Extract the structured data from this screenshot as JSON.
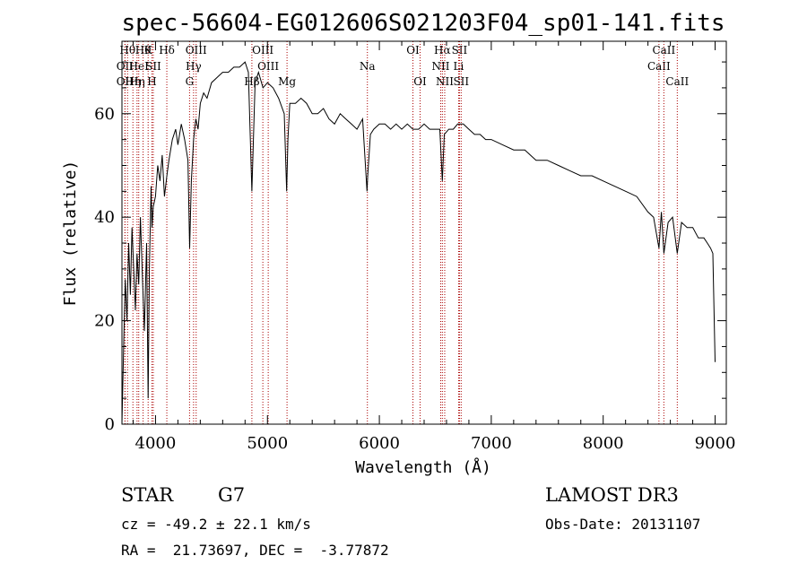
{
  "chart_data": {
    "type": "line",
    "title": "spec-56604-EG012606S021203F04_sp01-141.fits",
    "xlabel": "Wavelength (Å)",
    "ylabel": "Flux (relative)",
    "xlim": [
      3700,
      9100
    ],
    "ylim": [
      0,
      74
    ],
    "xticks": [
      4000,
      5000,
      6000,
      7000,
      8000,
      9000
    ],
    "yticks": [
      0,
      20,
      40,
      60
    ],
    "grid": false,
    "series": [
      {
        "x": [
          3700,
          3715,
          3730,
          3745,
          3760,
          3775,
          3790,
          3805,
          3820,
          3835,
          3850,
          3865,
          3880,
          3900,
          3920,
          3934,
          3945,
          3960,
          3968,
          3980,
          4000,
          4020,
          4040,
          4060,
          4080,
          4101,
          4120,
          4150,
          4180,
          4200,
          4230,
          4260,
          4290,
          4305,
          4320,
          4340,
          4360,
          4380,
          4400,
          4430,
          4460,
          4500,
          4550,
          4600,
          4650,
          4700,
          4750,
          4800,
          4830,
          4861,
          4890,
          4920,
          4960,
          5000,
          5050,
          5100,
          5150,
          5172,
          5183,
          5200,
          5250,
          5300,
          5350,
          5400,
          5450,
          5500,
          5550,
          5600,
          5650,
          5700,
          5750,
          5800,
          5850,
          5890,
          5896,
          5920,
          5950,
          6000,
          6050,
          6100,
          6150,
          6200,
          6250,
          6300,
          6350,
          6400,
          6450,
          6500,
          6540,
          6563,
          6580,
          6620,
          6660,
          6700,
          6750,
          6800,
          6850,
          6900,
          6950,
          7000,
          7100,
          7200,
          7300,
          7400,
          7500,
          7600,
          7700,
          7800,
          7900,
          8000,
          8100,
          8200,
          8300,
          8400,
          8450,
          8498,
          8520,
          8542,
          8580,
          8620,
          8662,
          8700,
          8750,
          8800,
          8850,
          8900,
          8930,
          8960,
          8980,
          9000
        ],
        "y": [
          0,
          15,
          28,
          20,
          35,
          25,
          38,
          30,
          22,
          33,
          27,
          40,
          30,
          18,
          35,
          5,
          30,
          46,
          38,
          42,
          44,
          50,
          47,
          52,
          44,
          48,
          51,
          55,
          57,
          54,
          58,
          55,
          51,
          34,
          47,
          55,
          59,
          57,
          62,
          64,
          63,
          66,
          67,
          68,
          68,
          69,
          69,
          70,
          68,
          45,
          66,
          68,
          65,
          66,
          65,
          63,
          60,
          45,
          55,
          62,
          62,
          63,
          62,
          60,
          60,
          61,
          59,
          58,
          60,
          59,
          58,
          57,
          59,
          45,
          48,
          56,
          57,
          58,
          58,
          57,
          58,
          57,
          58,
          57,
          57,
          58,
          57,
          57,
          57,
          47,
          56,
          57,
          57,
          58,
          58,
          57,
          56,
          56,
          55,
          55,
          54,
          53,
          53,
          51,
          51,
          50,
          49,
          48,
          48,
          47,
          46,
          45,
          44,
          41,
          40,
          34,
          41,
          33,
          39,
          40,
          33,
          39,
          38,
          38,
          36,
          36,
          35,
          34,
          33,
          12
        ]
      }
    ],
    "lines": [
      {
        "wl": 3727,
        "label": "OII",
        "row": 1
      },
      {
        "wl": 3727,
        "label": "OII",
        "row": 2
      },
      {
        "wl": 3750,
        "label": "Hθ",
        "row": 0
      },
      {
        "wl": 3798,
        "label": "Hη",
        "row": 2
      },
      {
        "wl": 3835,
        "label": "Hη",
        "row": 2
      },
      {
        "wl": 3850,
        "label": "HeI",
        "row": 1
      },
      {
        "wl": 3889,
        "label": "Hθ",
        "row": 0
      },
      {
        "wl": 3934,
        "label": "K",
        "row": 0
      },
      {
        "wl": 3968,
        "label": "H",
        "row": 2
      },
      {
        "wl": 3980,
        "label": "SII",
        "row": 1
      },
      {
        "wl": 4101,
        "label": "Hδ",
        "row": 0
      },
      {
        "wl": 4304,
        "label": "G",
        "row": 2
      },
      {
        "wl": 4340,
        "label": "Hγ",
        "row": 1
      },
      {
        "wl": 4363,
        "label": "OIII",
        "row": 0
      },
      {
        "wl": 4861,
        "label": "Hβ",
        "row": 2
      },
      {
        "wl": 4959,
        "label": "OIII",
        "row": 0
      },
      {
        "wl": 5007,
        "label": "OIII",
        "row": 1
      },
      {
        "wl": 5175,
        "label": "Mg",
        "row": 2
      },
      {
        "wl": 5893,
        "label": "Na",
        "row": 1
      },
      {
        "wl": 6300,
        "label": "OI",
        "row": 0
      },
      {
        "wl": 6364,
        "label": "OI",
        "row": 2
      },
      {
        "wl": 6548,
        "label": "NII",
        "row": 1
      },
      {
        "wl": 6563,
        "label": "Hα",
        "row": 0
      },
      {
        "wl": 6584,
        "label": "NII",
        "row": 2
      },
      {
        "wl": 6708,
        "label": "Li",
        "row": 1
      },
      {
        "wl": 6716,
        "label": "SII",
        "row": 0
      },
      {
        "wl": 6731,
        "label": "SII",
        "row": 2
      },
      {
        "wl": 8498,
        "label": "CaII",
        "row": 1
      },
      {
        "wl": 8542,
        "label": "CaII",
        "row": 0
      },
      {
        "wl": 8662,
        "label": "CaII",
        "row": 2
      }
    ]
  },
  "info": {
    "class": "STAR",
    "subclass": "G7",
    "survey": "LAMOST DR3",
    "cz": "cz = -49.2 ± 22.1 km/s",
    "obs_date": "Obs-Date: 20131107",
    "coords": "RA =  21.73697, DEC =  -3.77872"
  }
}
